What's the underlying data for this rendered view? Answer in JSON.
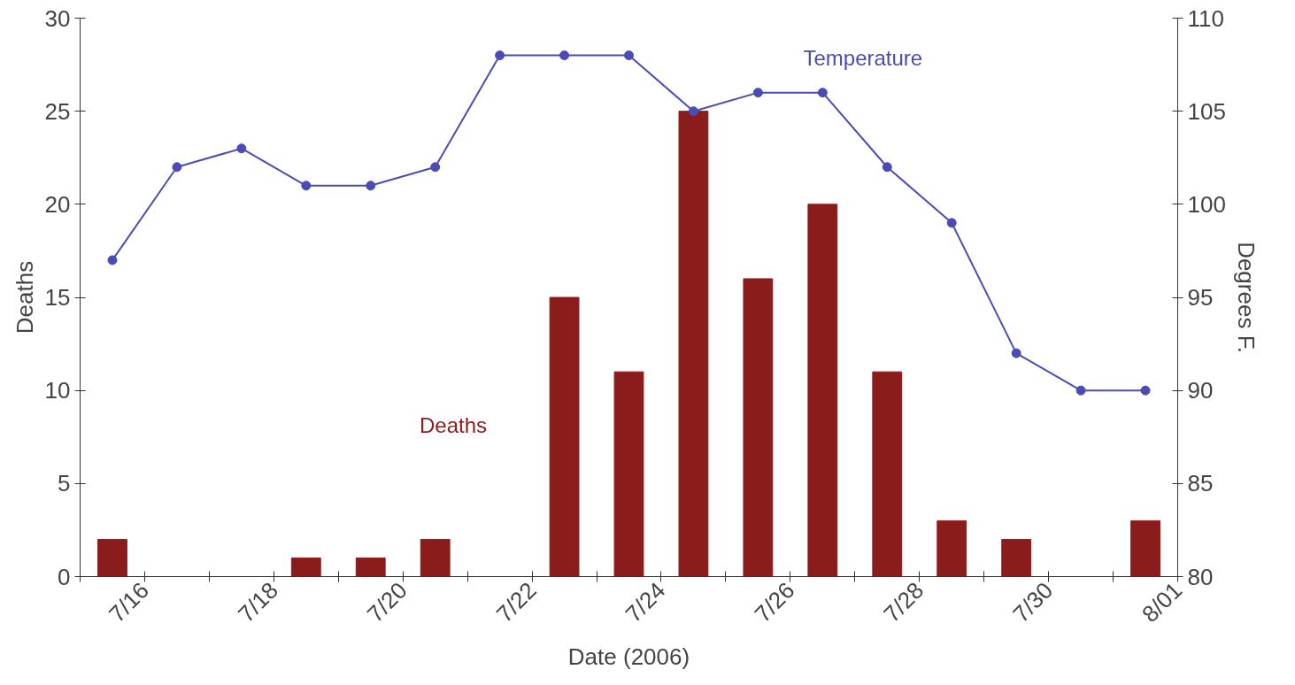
{
  "chart_data": {
    "type": "bar",
    "xlabel": "Date (2006)",
    "ylabel": "Deaths",
    "y2label": "Degrees F.",
    "x": [
      "2006-07-15T12:00",
      "2006-07-16T12:00",
      "2006-07-17T12:00",
      "2006-07-18T12:00",
      "2006-07-19T12:00",
      "2006-07-20T12:00",
      "2006-07-21T12:00",
      "2006-07-22T12:00",
      "2006-07-23T12:00",
      "2006-07-24T12:00",
      "2006-07-25T12:00",
      "2006-07-26T12:00",
      "2006-07-27T12:00",
      "2006-07-28T12:00",
      "2006-07-29T12:00",
      "2006-07-30T12:00",
      "2006-07-31T12:00"
    ],
    "series": [
      {
        "name": "Deaths",
        "color": "#8b1c1c",
        "values": [
          2,
          0,
          0,
          1,
          1,
          2,
          0,
          15,
          11,
          25,
          16,
          20,
          11,
          3,
          2,
          0,
          3
        ]
      },
      {
        "name": "Temperature",
        "type": "line",
        "axis": "y2",
        "color": "#4b4bb5",
        "marker": "circle",
        "values": [
          97,
          102,
          103,
          101,
          101,
          102,
          108,
          108,
          108,
          105,
          106,
          106,
          102,
          99,
          92,
          90,
          90
        ]
      }
    ],
    "xlim": [
      "2006-07-15",
      "2006-08-01"
    ],
    "xticks": [
      {
        "value": "2006-07-15",
        "label": null
      },
      {
        "value": "2006-07-16",
        "label": "7/16"
      },
      {
        "value": "2006-07-17",
        "label": null
      },
      {
        "value": "2006-07-18",
        "label": "7/18"
      },
      {
        "value": "2006-07-19",
        "label": null
      },
      {
        "value": "2006-07-20",
        "label": "7/20"
      },
      {
        "value": "2006-07-21",
        "label": null
      },
      {
        "value": "2006-07-22",
        "label": "7/22"
      },
      {
        "value": "2006-07-23",
        "label": null
      },
      {
        "value": "2006-07-24",
        "label": "7/24"
      },
      {
        "value": "2006-07-25",
        "label": null
      },
      {
        "value": "2006-07-26",
        "label": "7/26"
      },
      {
        "value": "2006-07-27",
        "label": null
      },
      {
        "value": "2006-07-28",
        "label": "7/28"
      },
      {
        "value": "2006-07-29",
        "label": null
      },
      {
        "value": "2006-07-30",
        "label": "7/30"
      },
      {
        "value": "2006-07-31",
        "label": null
      },
      {
        "value": "2006-08-01",
        "label": "8/01"
      }
    ],
    "ylim": [
      0,
      30
    ],
    "yticks": [
      0,
      5,
      10,
      15,
      20,
      25,
      30
    ],
    "y2lim": [
      80,
      110
    ],
    "y2ticks": [
      80,
      85,
      90,
      95,
      100,
      105,
      110
    ],
    "grid": false,
    "legend": false
  }
}
